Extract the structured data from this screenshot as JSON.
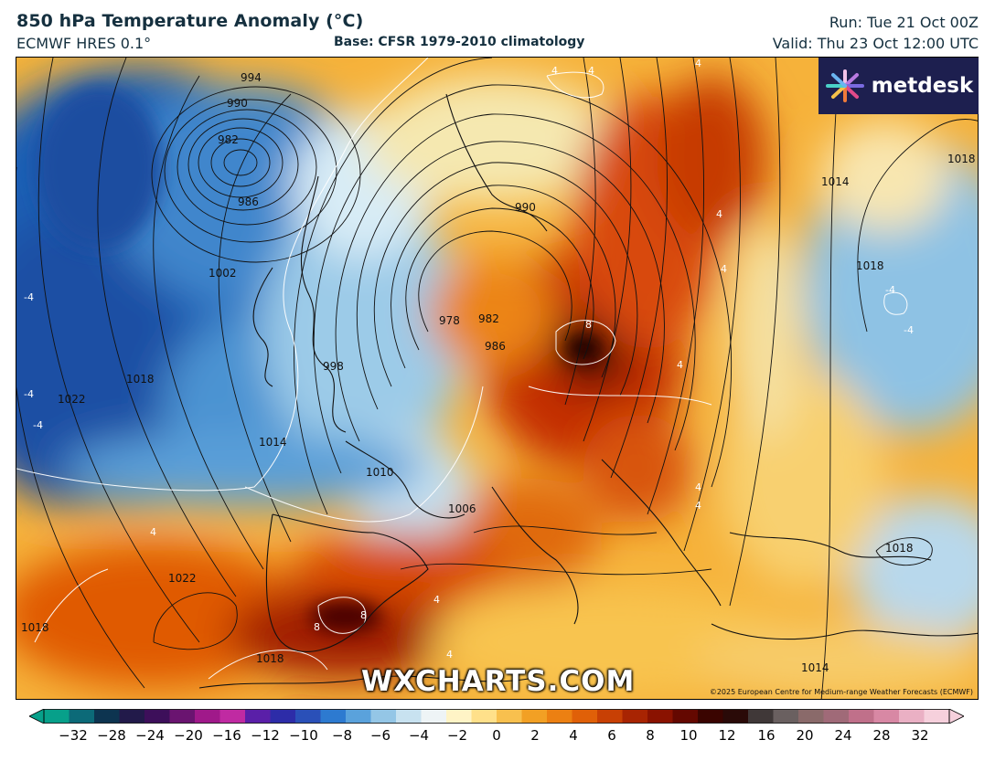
{
  "header": {
    "title": "850 hPa Temperature Anomaly (°C)",
    "model": "ECMWF HRES 0.1°",
    "base": "Base: CFSR 1979-2010 climatology",
    "run": "Run: Tue 21 Oct 00Z",
    "valid": "Valid: Thu 23 Oct 12:00 UTC"
  },
  "brand": {
    "logo_text": "metdesk",
    "watermark": "WXCHARTS.COM"
  },
  "credit": "©2025 European Centre for Medium-range Weather Forecasts (ECMWF)",
  "colorbar": {
    "ticks": [
      "−32",
      "−28",
      "−24",
      "−20",
      "−16",
      "−12",
      "−10",
      "−8",
      "−6",
      "−4",
      "−2",
      "0",
      "2",
      "4",
      "6",
      "8",
      "10",
      "12",
      "16",
      "20",
      "24",
      "28",
      "32"
    ],
    "colors": [
      "#07a08a",
      "#0c6a78",
      "#0d3450",
      "#221a4a",
      "#3d0f5a",
      "#6a1470",
      "#a0198a",
      "#c02aa2",
      "#5a1fa8",
      "#2d2ca8",
      "#2a50b8",
      "#2d7ad0",
      "#5aa2dc",
      "#94c6e6",
      "#c8e2f0",
      "#eef4f6",
      "#fff4c6",
      "#ffe08a",
      "#f8c04e",
      "#f2a024",
      "#ec8012",
      "#e06008",
      "#c84004",
      "#a82402",
      "#8a1200",
      "#640800",
      "#3a0400",
      "#2a0a08",
      "#403838",
      "#6a6060",
      "#8a6a6a",
      "#a06a78",
      "#c0708a",
      "#d888a4",
      "#eab0c4",
      "#f6d0dc"
    ]
  },
  "map": {
    "isobar_labels": [
      "994",
      "990",
      "982",
      "986",
      "990",
      "982",
      "986",
      "978",
      "1002",
      "998",
      "1018",
      "1022",
      "1014",
      "1010",
      "1006",
      "1022",
      "1018",
      "1018",
      "1014",
      "1018",
      "1018",
      "1014",
      "1018"
    ],
    "anomaly_labels": [
      "-4",
      "-4",
      "-4",
      "-4",
      "-4",
      "4",
      "4",
      "4",
      "4",
      "4",
      "4",
      "8",
      "8",
      "8",
      "4",
      "4",
      "4",
      "4",
      "4"
    ]
  }
}
